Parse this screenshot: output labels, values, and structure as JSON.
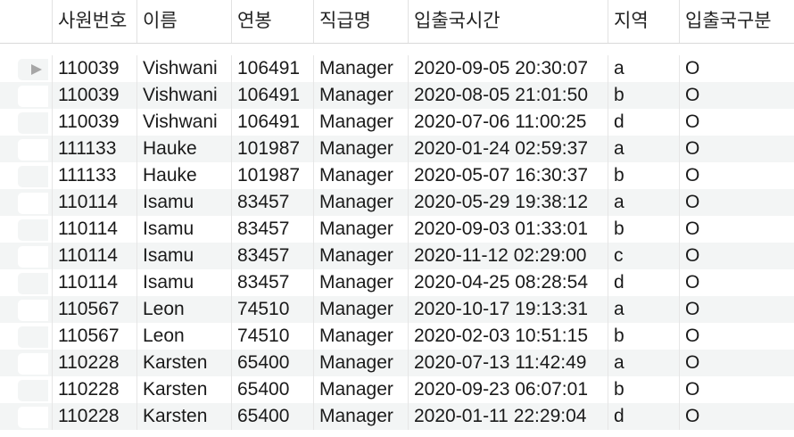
{
  "columns": [
    "사원번호",
    "이름",
    "연봉",
    "직급명",
    "입출국시간",
    "지역",
    "입출국구분"
  ],
  "rows": [
    [
      "110039",
      "Vishwani",
      "106491",
      "Manager",
      "2020-09-05 20:30:07",
      "a",
      "O"
    ],
    [
      "110039",
      "Vishwani",
      "106491",
      "Manager",
      "2020-08-05 21:01:50",
      "b",
      "O"
    ],
    [
      "110039",
      "Vishwani",
      "106491",
      "Manager",
      "2020-07-06 11:00:25",
      "d",
      "O"
    ],
    [
      "111133",
      "Hauke",
      "101987",
      "Manager",
      "2020-01-24 02:59:37",
      "a",
      "O"
    ],
    [
      "111133",
      "Hauke",
      "101987",
      "Manager",
      "2020-05-07 16:30:37",
      "b",
      "O"
    ],
    [
      "110114",
      "Isamu",
      "83457",
      "Manager",
      "2020-05-29 19:38:12",
      "a",
      "O"
    ],
    [
      "110114",
      "Isamu",
      "83457",
      "Manager",
      "2020-09-03 01:33:01",
      "b",
      "O"
    ],
    [
      "110114",
      "Isamu",
      "83457",
      "Manager",
      "2020-11-12 02:29:00",
      "c",
      "O"
    ],
    [
      "110114",
      "Isamu",
      "83457",
      "Manager",
      "2020-04-25 08:28:54",
      "d",
      "O"
    ],
    [
      "110567",
      "Leon",
      "74510",
      "Manager",
      "2020-10-17 19:13:31",
      "a",
      "O"
    ],
    [
      "110567",
      "Leon",
      "74510",
      "Manager",
      "2020-02-03 10:51:15",
      "b",
      "O"
    ],
    [
      "110228",
      "Karsten",
      "65400",
      "Manager",
      "2020-07-13 11:42:49",
      "a",
      "O"
    ],
    [
      "110228",
      "Karsten",
      "65400",
      "Manager",
      "2020-09-23 06:07:01",
      "b",
      "O"
    ],
    [
      "110228",
      "Karsten",
      "65400",
      "Manager",
      "2020-01-11 22:29:04",
      "d",
      "O"
    ]
  ],
  "selected_row_index": 0,
  "icons": {
    "current_row_marker": "triangle-right-icon"
  }
}
